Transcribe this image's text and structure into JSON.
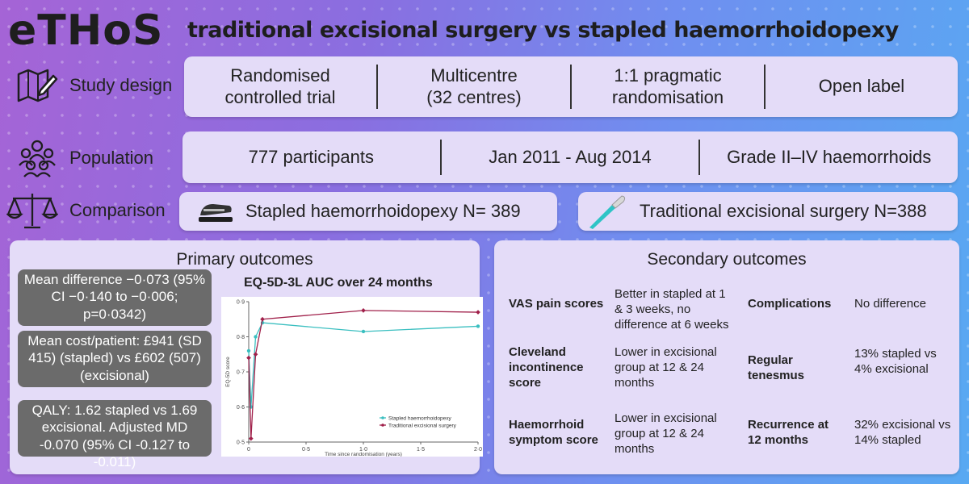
{
  "logo": "eTHoS",
  "headline": "traditional excisional surgery vs stapled haemorrhoidopexy",
  "study_design": {
    "label": "Study design",
    "cells": [
      "Randomised\ncontrolled trial",
      "Multicentre\n(32 centres)",
      "1:1 pragmatic\nrandomisation",
      "Open label"
    ]
  },
  "population": {
    "label": "Population",
    "cells": [
      "777 participants",
      "Jan 2011 - Aug 2014",
      "Grade II–IV haemorrhoids"
    ]
  },
  "comparison": {
    "label": "Comparison",
    "stapled": "Stapled haemorrhoidopexy N= 389",
    "excisional": "Traditional excisional surgery N=388"
  },
  "primary": {
    "title": "Primary outcomes",
    "box1": "Mean difference −0·073 (95% CI −0·140 to −0·006; p=0·0342)",
    "box2": "Mean cost/patient: £941 (SD 415) (stapled) vs £602 (507) (excisional)",
    "box3": "QALY: 1.62 stapled vs  1.69 excisional. Adjusted MD -0.070 (95% CI -0.127 to -0.011)"
  },
  "chart_data": {
    "type": "line",
    "title": "EQ-5D-3L AUC over 24 months",
    "xlabel": "Time since randomisation (years)",
    "ylabel": "EQ-5D score",
    "xlim": [
      0,
      2.0
    ],
    "ylim": [
      0.5,
      0.9
    ],
    "xticks": [
      "0",
      "0·5",
      "1·0",
      "1·5",
      "2·0"
    ],
    "yticks": [
      "0·5",
      "0·6",
      "0·7",
      "0·8",
      "0·9"
    ],
    "legend": "bottom-right",
    "series": [
      {
        "name": "Stapled haemorrhoidopexy",
        "color": "#3bbfc0",
        "x": [
          0,
          0.02,
          0.06,
          0.12,
          1.0,
          2.0
        ],
        "y": [
          0.76,
          0.6,
          0.8,
          0.84,
          0.815,
          0.83
        ]
      },
      {
        "name": "Traditional excisional surgery",
        "color": "#a0204a",
        "x": [
          0,
          0.02,
          0.06,
          0.12,
          1.0,
          2.0
        ],
        "y": [
          0.74,
          0.51,
          0.75,
          0.85,
          0.875,
          0.87
        ]
      }
    ]
  },
  "secondary": {
    "title": "Secondary outcomes",
    "items": [
      {
        "label": "VAS pain scores",
        "value": "Better in stapled at 1 & 3 weeks, no difference at 6 weeks"
      },
      {
        "label": "Complications",
        "value": "No difference"
      },
      {
        "label": "Cleveland incontinence score",
        "value": "Lower in excisional group at 12 & 24 months"
      },
      {
        "label": "Regular tenesmus",
        "value": "13% stapled vs 4% excisional"
      },
      {
        "label": "Haemorrhoid symptom score",
        "value": "Lower in excisional group at 12 & 24 months"
      },
      {
        "label": "Recurrence at 12 months",
        "value": "32% excisional vs 14% stapled"
      }
    ]
  },
  "icons": {
    "design": "map-pencil-icon",
    "population": "people-group-icon",
    "comparison": "scales-icon",
    "stapler": "stapler-icon",
    "scalpel": "scalpel-icon"
  }
}
